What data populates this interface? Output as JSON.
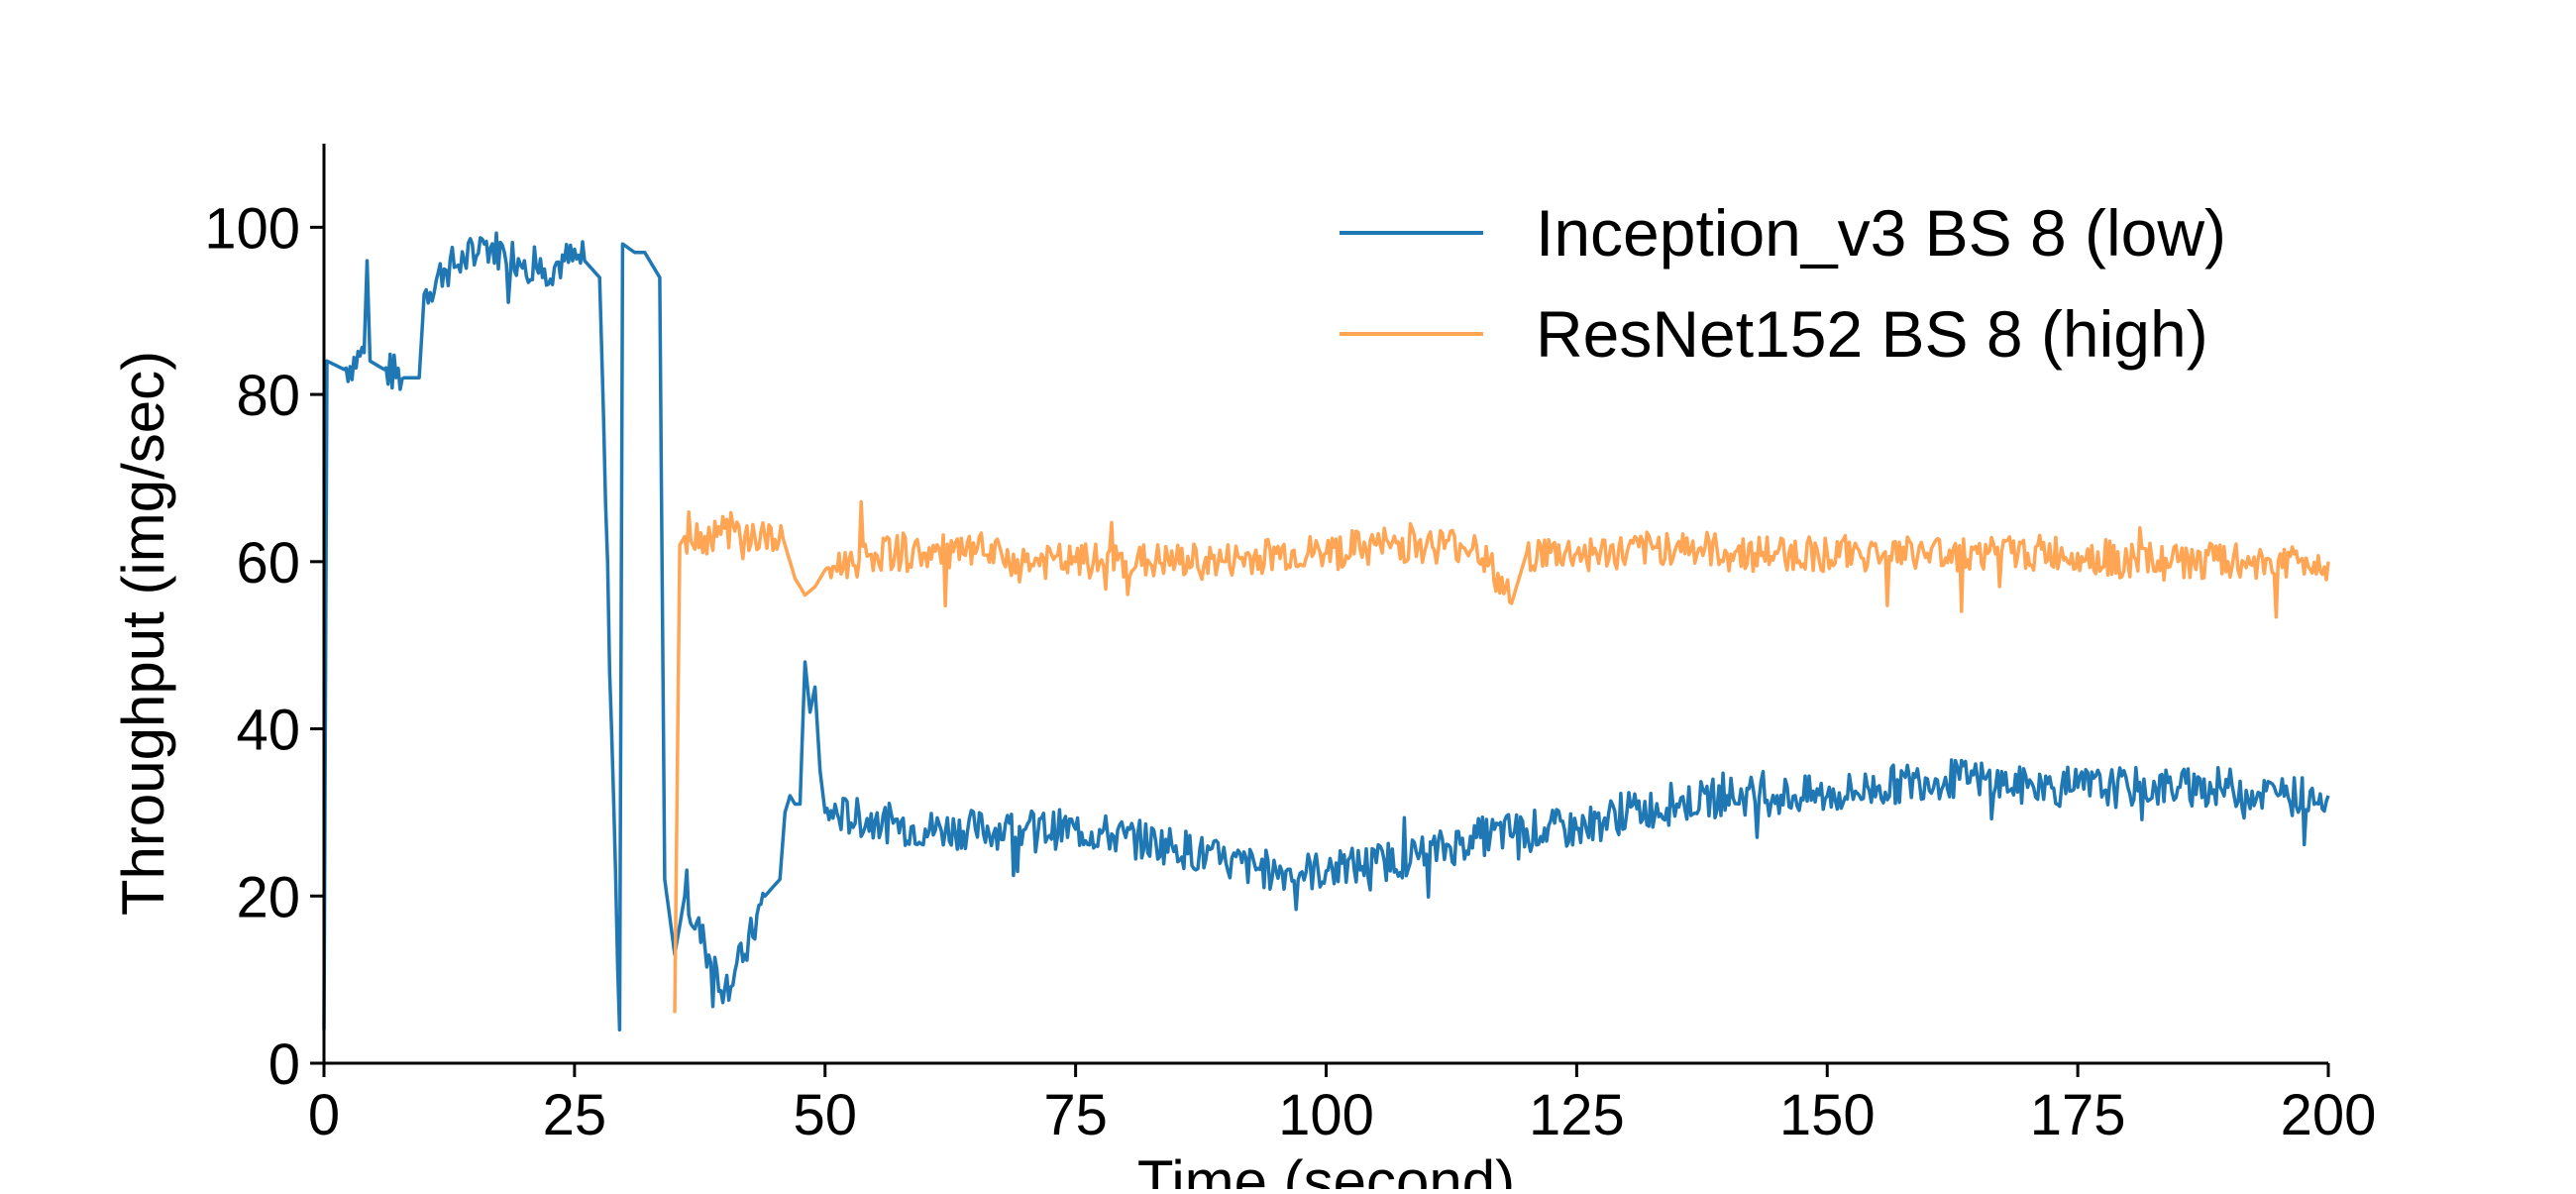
{
  "chart_data": {
    "type": "line",
    "title": "",
    "xlabel": "Time (second)",
    "ylabel": "Throughput (img/sec)",
    "xlim": [
      0,
      200
    ],
    "ylim": [
      0,
      110
    ],
    "xticks": [
      0,
      25,
      50,
      75,
      100,
      125,
      150,
      175,
      200
    ],
    "yticks": [
      0,
      20,
      40,
      60,
      80,
      100
    ],
    "xtick_labels": [
      "0",
      "25",
      "50",
      "75",
      "100",
      "125",
      "150",
      "175",
      "200"
    ],
    "ytick_labels": [
      "0",
      "20",
      "40",
      "60",
      "80",
      "100"
    ],
    "grid": false,
    "legend_position": "top-right",
    "series": [
      {
        "name": "Inception_v3 BS 8 (low)",
        "color": "#1f77b4",
        "x": [
          0,
          0.3,
          2,
          4,
          4.3,
          4.6,
          6,
          8,
          9.5,
          10,
          12,
          14,
          16,
          18,
          20,
          22,
          24,
          26,
          27.5,
          29.5,
          29.8,
          31,
          32,
          33,
          33.5,
          34,
          35,
          36,
          38,
          40,
          42,
          44,
          45.5,
          46,
          46.5,
          47,
          47.5,
          48,
          48.5,
          49,
          49.5,
          50,
          55,
          60,
          65,
          70,
          75,
          80,
          85,
          90,
          95,
          100,
          105,
          110,
          115,
          120,
          125,
          130,
          135,
          140,
          145,
          150,
          155,
          160,
          165,
          170,
          175,
          180,
          185,
          190,
          195,
          200
        ],
        "values": [
          4,
          84,
          83,
          85,
          96,
          84,
          83,
          82,
          82,
          92,
          95,
          96,
          98,
          97,
          96,
          95,
          96,
          96,
          94,
          4,
          98,
          97,
          97,
          95,
          94,
          22,
          13,
          20,
          14,
          9,
          13,
          20,
          22,
          30,
          32,
          31,
          31,
          48,
          42,
          45,
          35,
          30,
          29,
          28,
          28,
          28,
          28,
          27,
          26,
          24,
          23,
          23,
          24,
          25,
          27,
          28,
          28,
          30,
          31,
          32,
          32,
          32,
          33,
          34,
          34,
          33,
          33,
          33,
          33,
          33,
          32,
          32
        ]
      },
      {
        "name": "ResNet152 BS 8 (high)",
        "color": "#ffa554",
        "x": [
          35,
          35.5,
          36,
          38,
          40,
          42,
          44,
          46,
          47,
          48,
          49,
          50,
          55,
          60,
          65,
          70,
          75,
          80,
          85,
          90,
          95,
          100,
          105,
          110,
          115,
          118.5,
          120,
          125,
          130,
          135,
          140,
          145,
          150,
          155,
          160,
          165,
          170,
          175,
          180,
          185,
          190,
          195,
          200
        ],
        "values": [
          6,
          62,
          63,
          63,
          64,
          63,
          63,
          62,
          58,
          56,
          57,
          59,
          61,
          61,
          61,
          60,
          60,
          60,
          60,
          60,
          61,
          61,
          62,
          62,
          62,
          55,
          61,
          61,
          61,
          62,
          61,
          61,
          61,
          61,
          61,
          61,
          61,
          61,
          60,
          60,
          60,
          60,
          60
        ]
      }
    ]
  }
}
